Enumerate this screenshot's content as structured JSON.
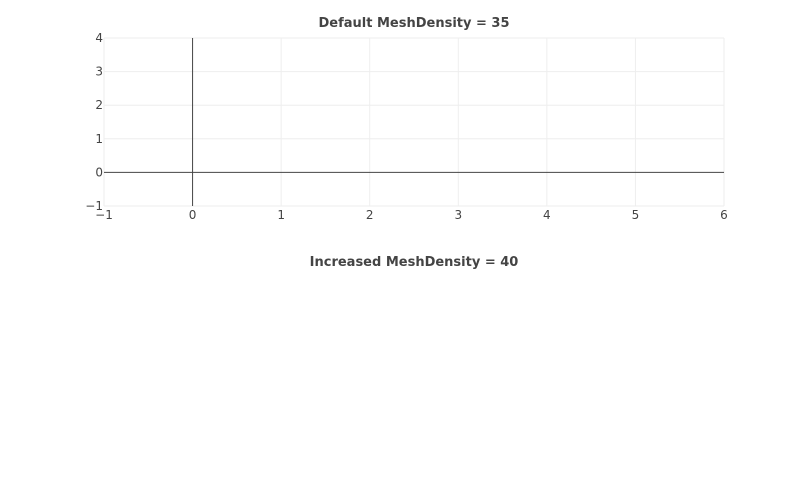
{
  "chart_data": [
    {
      "type": "line",
      "title": "Default MeshDensity = 35",
      "xlabel": "",
      "ylabel": "",
      "xlim": [
        -1,
        6
      ],
      "ylim": [
        -1,
        4
      ],
      "xticks": [
        "−1",
        "0",
        "1",
        "2",
        "3",
        "4",
        "5",
        "6"
      ],
      "yticks": [
        "−1",
        "0",
        "1",
        "2",
        "3",
        "4"
      ],
      "grid": true,
      "zeroline": true,
      "series": []
    },
    {
      "type": "line",
      "title": "Increased MeshDensity = 40",
      "xlabel": "",
      "ylabel": "",
      "series": []
    }
  ],
  "colors": {
    "grid": "#eeeeee",
    "zeroline": "#444444",
    "text": "#444444"
  }
}
